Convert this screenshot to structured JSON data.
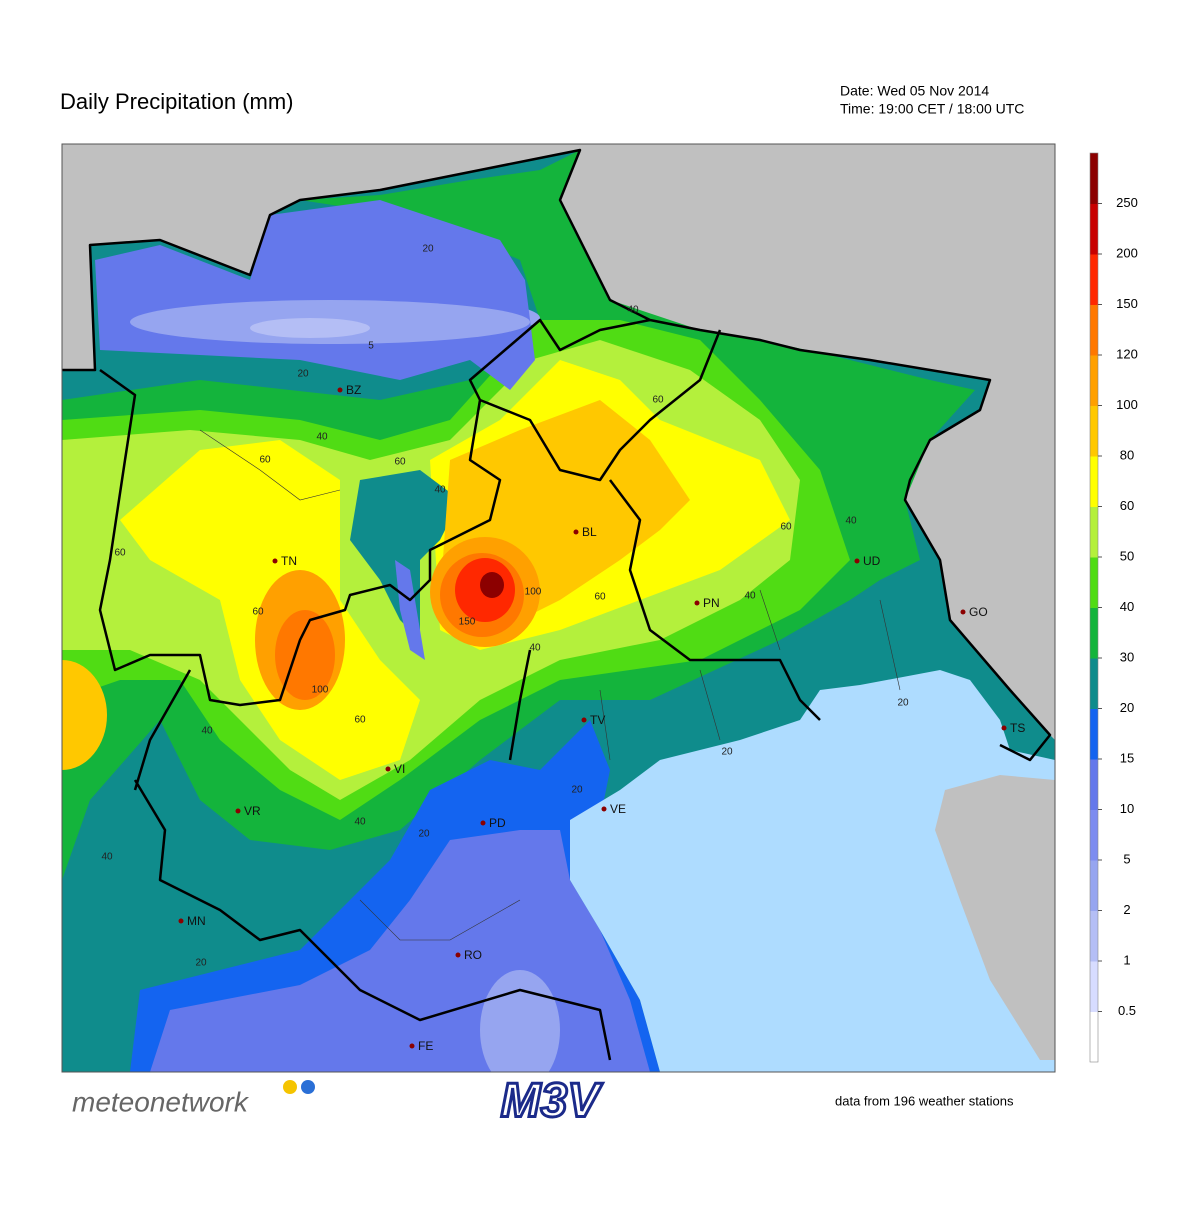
{
  "header": {
    "title": "Daily Precipitation (mm)",
    "date": "Date: Wed 05 Nov 2014",
    "time": "Time: 19:00 CET / 18:00 UTC"
  },
  "map": {
    "cities": [
      "BZ",
      "TN",
      "BL",
      "UD",
      "PN",
      "GO",
      "TV",
      "VI",
      "VR",
      "PD",
      "VE",
      "MN",
      "RO",
      "FE",
      "TS"
    ],
    "contour_labels": [
      "20",
      "5",
      "20",
      "40",
      "60",
      "60",
      "40",
      "100",
      "150",
      "100",
      "60",
      "40",
      "60",
      "40",
      "40",
      "20",
      "20",
      "20",
      "40",
      "60",
      "40",
      "20",
      "40",
      "60",
      "60",
      "60",
      "40",
      "20"
    ]
  },
  "colorbar": {
    "ticks": [
      0.5,
      1,
      2,
      5,
      10,
      15,
      20,
      30,
      40,
      50,
      60,
      80,
      100,
      120,
      150,
      200,
      250
    ],
    "colors": [
      "#ffffff",
      "#d7dcff",
      "#b4bef5",
      "#96a5f0",
      "#7d8cf0",
      "#6478eb",
      "#1464f0",
      "#0f8c8c",
      "#14b43c",
      "#50dc14",
      "#b4f03c",
      "#ffff00",
      "#ffc800",
      "#ffa000",
      "#ff7800",
      "#ff2800",
      "#c80000",
      "#8c0000"
    ]
  },
  "footer": {
    "logo_left": "meteonetwork",
    "logo_right": "M3V",
    "stations": "data from 196 weather stations"
  }
}
